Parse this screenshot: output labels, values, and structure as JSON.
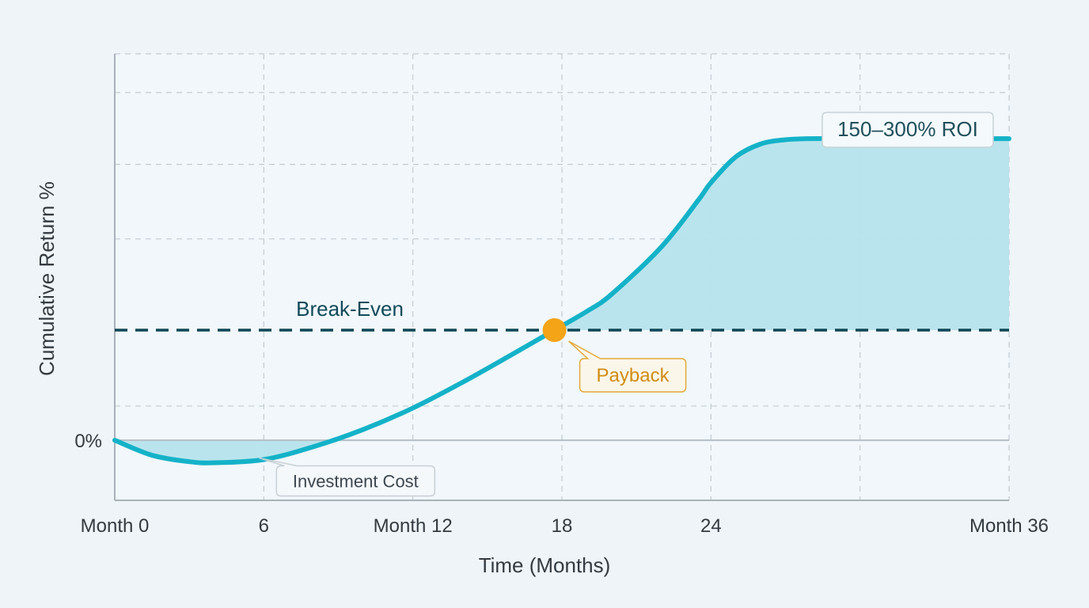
{
  "chart_data": {
    "type": "line",
    "xlabel": "Time (Months)",
    "ylabel": "Cumulative Return %",
    "x_ticks": [
      {
        "value": 0,
        "label": "Month 0"
      },
      {
        "value": 6,
        "label": "6"
      },
      {
        "value": 12,
        "label": "Month 12"
      },
      {
        "value": 18,
        "label": "18"
      },
      {
        "value": 24,
        "label": "24"
      },
      {
        "value": 36,
        "label": "Month 36"
      }
    ],
    "y_ticks": [
      {
        "value": 0,
        "label": "0%"
      }
    ],
    "xlim": [
      0,
      36
    ],
    "ylim": [
      -28,
      180
    ],
    "grid": true,
    "series": [
      {
        "x": [
          0,
          1.5,
          3,
          4,
          6,
          8,
          10,
          12,
          14,
          16,
          17.7,
          19,
          20,
          22,
          23.5,
          24,
          25,
          26,
          27,
          28,
          30,
          33,
          36
        ],
        "y": [
          0,
          -7,
          -10,
          -10.5,
          -9,
          -3,
          5,
          15,
          27,
          40,
          51.3,
          60,
          68,
          90,
          112,
          120,
          132,
          138,
          140,
          140.5,
          140.5,
          140.5,
          140.5
        ]
      }
    ],
    "break_even": {
      "value": 51.3,
      "label": "Break-Even"
    },
    "annotations": [
      {
        "text": "Payback",
        "x": 17.7,
        "y": 51.3
      },
      {
        "text": "150–300% ROI",
        "x": 33,
        "y": 125
      },
      {
        "text": "Investment Cost",
        "x": 6,
        "y": -9
      }
    ],
    "colors": {
      "line": "#14b2c8",
      "fill": "#b6e3ec",
      "break_even": "#0f4654",
      "payback": "#f3a417",
      "grid": "#c4ccd4"
    }
  }
}
